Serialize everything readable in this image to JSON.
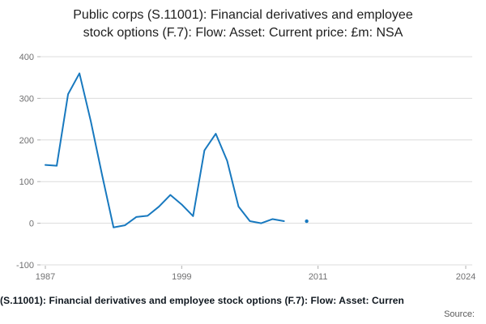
{
  "title": {
    "line1": "Public corps (S.11001): Financial derivatives and employee",
    "line2": "stock options (F.7): Flow: Asset: Current price: £m: NSA"
  },
  "footer": {
    "caption": "(S.11001): Financial derivatives and employee stock options (F.7): Flow: Asset: Curren",
    "source_label": "Source:"
  },
  "chart_data": {
    "type": "line",
    "title": "Public corps (S.11001): Financial derivatives and employee stock options (F.7): Flow: Asset: Current price: £m: NSA",
    "x": [
      1987,
      1988,
      1989,
      1990,
      1991,
      1992,
      1993,
      1994,
      1995,
      1996,
      1997,
      1998,
      1999,
      2000,
      2001,
      2002,
      2003,
      2004,
      2005,
      2006,
      2007,
      2008,
      2009,
      2010
    ],
    "values": [
      140,
      138,
      310,
      360,
      245,
      115,
      -10,
      -5,
      15,
      18,
      40,
      68,
      45,
      17,
      175,
      215,
      150,
      40,
      5,
      0,
      10,
      5,
      null,
      5
    ],
    "xlabel": "",
    "ylabel": "",
    "xlim": [
      1987,
      2024
    ],
    "ylim": [
      -100,
      400
    ],
    "xticks": [
      1987,
      1999,
      2011,
      2024
    ],
    "yticks": [
      -100,
      0,
      100,
      200,
      300,
      400
    ],
    "grid": "horizontal",
    "legend": "none",
    "line_color": "#1879bf",
    "grid_color": "#dcdcdc",
    "tick_label_color": "#707071",
    "axis_color": "#b0b0b0"
  }
}
